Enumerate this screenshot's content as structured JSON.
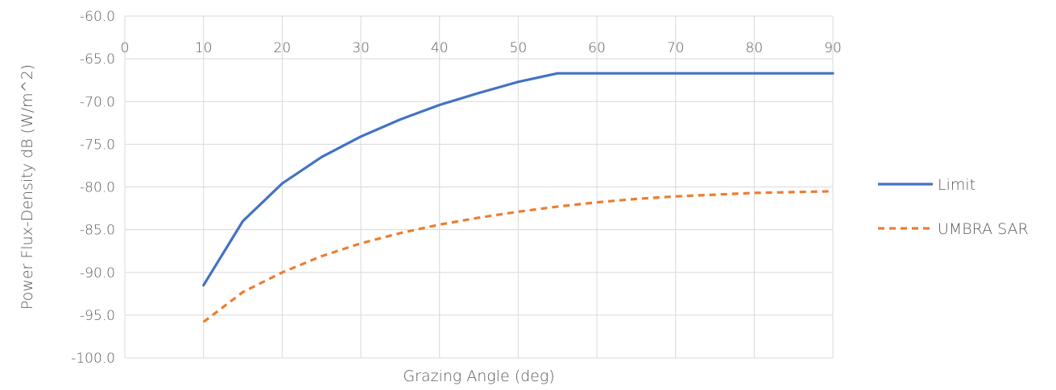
{
  "chart_data": {
    "type": "line",
    "title": "",
    "xlabel": "Grazing Angle (deg)",
    "ylabel": "Power Flux-Density dB (W/m^2)",
    "xlim": [
      0,
      90
    ],
    "ylim": [
      -100,
      -60
    ],
    "x_ticks": [
      "0",
      "10",
      "20",
      "30",
      "40",
      "50",
      "60",
      "70",
      "80",
      "90"
    ],
    "x_tick_values": [
      0,
      10,
      20,
      30,
      40,
      50,
      60,
      70,
      80,
      90
    ],
    "y_ticks": [
      "-60.0",
      "-65.0",
      "-70.0",
      "-75.0",
      "-80.0",
      "-85.0",
      "-90.0",
      "-95.0",
      "-100.0"
    ],
    "y_tick_values": [
      -60,
      -65,
      -70,
      -75,
      -80,
      -85,
      -90,
      -95,
      -100
    ],
    "x_axis_labels_position": "top",
    "grid": true,
    "legend_position": "right",
    "series": [
      {
        "name": "Limit",
        "color": "#4472c4",
        "style": "solid",
        "x": [
          10,
          15,
          20,
          25,
          30,
          35,
          40,
          45,
          50,
          55,
          60,
          65,
          70,
          75,
          80,
          85,
          90
        ],
        "y": [
          -91.5,
          -84.0,
          -79.6,
          -76.5,
          -74.1,
          -72.1,
          -70.4,
          -69.0,
          -67.7,
          -66.7,
          -66.7,
          -66.7,
          -66.7,
          -66.7,
          -66.7,
          -66.7,
          -66.7
        ]
      },
      {
        "name": "UMBRA SAR",
        "color": "#ed7d31",
        "style": "dashed",
        "x": [
          10,
          15,
          20,
          25,
          30,
          35,
          40,
          45,
          50,
          55,
          60,
          65,
          70,
          75,
          80,
          85,
          90
        ],
        "y": [
          -95.8,
          -92.3,
          -90.0,
          -88.1,
          -86.6,
          -85.4,
          -84.4,
          -83.6,
          -82.9,
          -82.3,
          -81.8,
          -81.4,
          -81.1,
          -80.9,
          -80.7,
          -80.6,
          -80.5
        ]
      }
    ]
  }
}
